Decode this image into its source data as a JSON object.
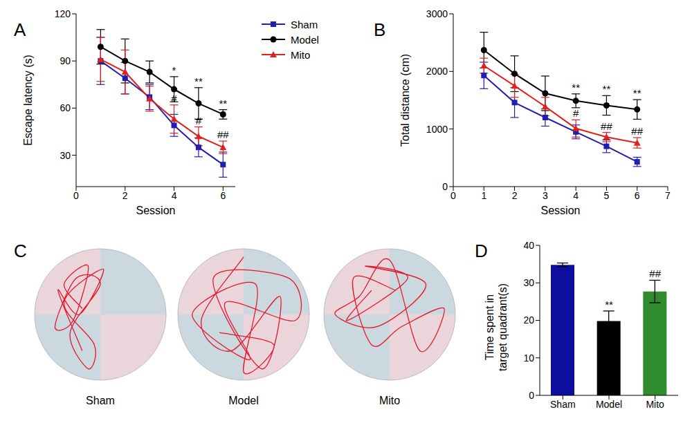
{
  "chart_data": [
    {
      "panel": "A",
      "type": "line",
      "xlabel": "Session",
      "ylabel": "Escape latency (s)",
      "x": [
        1,
        2,
        3,
        4,
        5,
        6
      ],
      "xlim": [
        0,
        6.5
      ],
      "xticks": [
        0,
        2,
        4,
        6
      ],
      "ylim": [
        10,
        120
      ],
      "yticks": [
        30,
        60,
        90,
        120
      ],
      "legend": "upper right",
      "series": [
        {
          "name": "Sham",
          "color": "#1f1fb4",
          "marker": "square",
          "values": [
            90,
            79,
            67,
            49,
            35,
            24
          ],
          "errors": [
            15,
            10,
            8,
            7,
            6,
            8
          ]
        },
        {
          "name": "Model",
          "color": "#000000",
          "marker": "circle",
          "values": [
            99,
            90,
            83,
            72,
            63,
            56
          ],
          "errors": [
            11,
            14,
            7,
            8,
            10,
            3
          ],
          "significance": [
            null,
            null,
            null,
            "*",
            "**",
            "**"
          ]
        },
        {
          "name": "Mito",
          "color": "#e0201b",
          "marker": "triangle",
          "values": [
            91,
            83,
            66,
            53,
            42,
            35
          ],
          "errors": [
            14,
            14,
            8,
            9,
            6,
            4
          ],
          "significance": [
            null,
            null,
            null,
            "#",
            "#",
            "##"
          ]
        }
      ]
    },
    {
      "panel": "B",
      "type": "line",
      "xlabel": "Session",
      "ylabel": "Total distance (cm)",
      "x": [
        1,
        2,
        3,
        4,
        5,
        6
      ],
      "xlim": [
        0,
        7
      ],
      "xticks": [
        0,
        1,
        2,
        3,
        4,
        5,
        6,
        7
      ],
      "ylim": [
        0,
        3000
      ],
      "yticks": [
        0,
        1000,
        2000,
        3000
      ],
      "series": [
        {
          "name": "Sham",
          "color": "#1f1fb4",
          "marker": "square",
          "values": [
            1930,
            1460,
            1200,
            950,
            700,
            430
          ],
          "errors": [
            230,
            260,
            150,
            120,
            110,
            80
          ]
        },
        {
          "name": "Model",
          "color": "#000000",
          "marker": "circle",
          "values": [
            2370,
            1960,
            1620,
            1490,
            1410,
            1340
          ],
          "errors": [
            310,
            310,
            300,
            120,
            170,
            170
          ],
          "significance": [
            null,
            null,
            null,
            "**",
            "**",
            "**"
          ]
        },
        {
          "name": "Mito",
          "color": "#e0201b",
          "marker": "triangle",
          "values": [
            2100,
            1750,
            1390,
            1010,
            860,
            760
          ],
          "errors": [
            130,
            200,
            160,
            150,
            80,
            90
          ],
          "significance": [
            null,
            null,
            null,
            "#",
            "##",
            "##"
          ]
        }
      ]
    },
    {
      "panel": "C",
      "type": "trajectory",
      "categories": [
        "Sham",
        "Model",
        "Mito"
      ]
    },
    {
      "panel": "D",
      "type": "bar",
      "ylabel": "Time spent in target quadrant(s)",
      "categories": [
        "Sham",
        "Model",
        "Mito"
      ],
      "values": [
        34.8,
        19.8,
        27.7
      ],
      "errors": [
        0.5,
        2.7,
        3.0
      ],
      "colors": [
        "#0d0d9e",
        "#000000",
        "#2e8b2e"
      ],
      "significance": [
        null,
        "**",
        "##"
      ],
      "ylim": [
        0,
        40
      ],
      "yticks": [
        0,
        10,
        20,
        30,
        40
      ]
    }
  ]
}
